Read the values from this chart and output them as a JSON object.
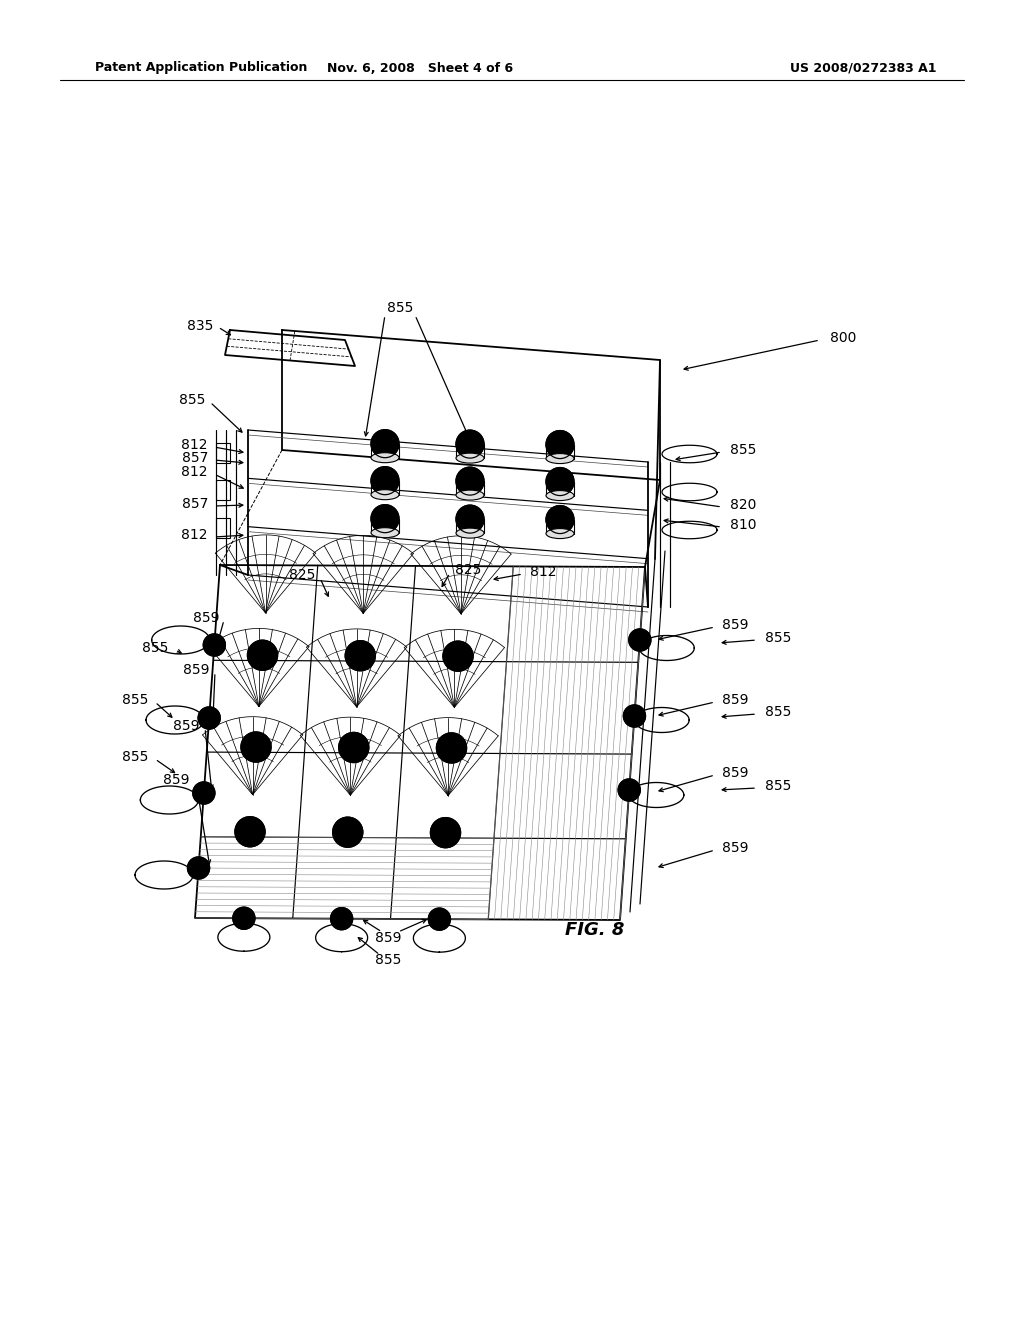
{
  "bg_color": "#ffffff",
  "header_left": "Patent Application Publication",
  "header_mid": "Nov. 6, 2008   Sheet 4 of 6",
  "header_right": "US 2008/0272383 A1",
  "fig_label": "FIG. 8",
  "black": "#000000"
}
